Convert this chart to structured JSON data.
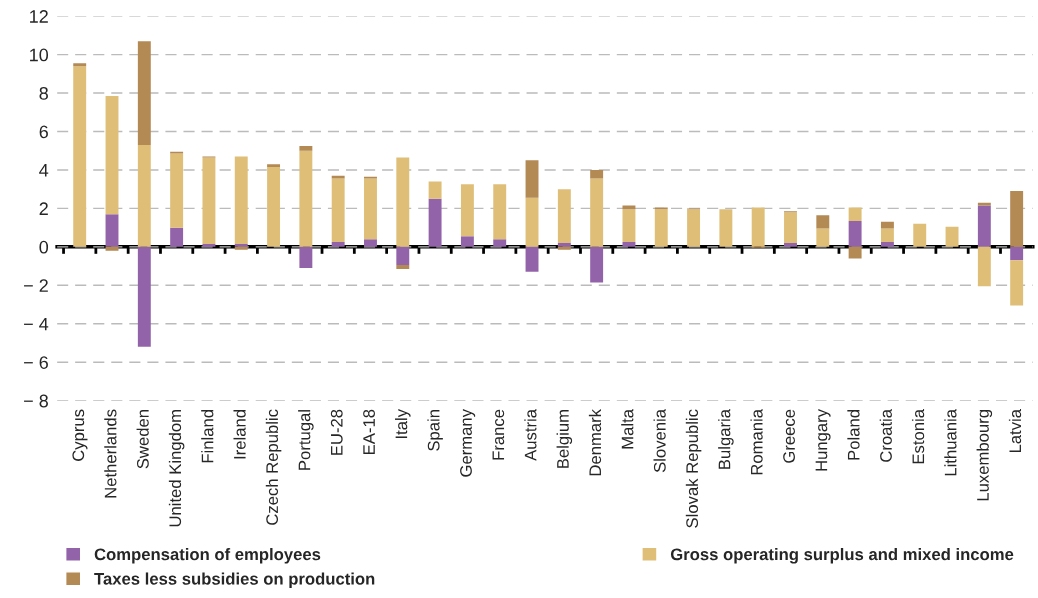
{
  "chart_data": {
    "type": "bar",
    "stacked": true,
    "categories": [
      "Cyprus",
      "Netherlands",
      "Sweden",
      "United Kingdom",
      "Finland",
      "Ireland",
      "Czech Republic",
      "Portugal",
      "EU-28",
      "EA-18",
      "Italy",
      "Spain",
      "Germany",
      "France",
      "Austria",
      "Belgium",
      "Denmark",
      "Malta",
      "Slovenia",
      "Slovak Republic",
      "Bulgaria",
      "Romania",
      "Greece",
      "Hungary",
      "Poland",
      "Croatia",
      "Estonia",
      "Lithuania",
      "Luxembourg",
      "Latvia"
    ],
    "series": [
      {
        "name": "Compensation of employees",
        "color": "#9363aa",
        "values": [
          0,
          1.7,
          -5.2,
          1.0,
          0.15,
          0.15,
          0,
          -1.1,
          0.25,
          0.4,
          -0.95,
          2.5,
          0.55,
          0.4,
          -1.3,
          0.2,
          -1.85,
          0.25,
          0,
          0,
          0,
          0,
          0.2,
          0,
          1.35,
          0.25,
          0,
          0,
          2.15,
          -0.7
        ]
      },
      {
        "name": "Gross operating surplus and mixed income",
        "color": "#dfbe78",
        "values": [
          9.4,
          6.15,
          5.3,
          3.85,
          4.5,
          4.55,
          4.15,
          5.0,
          3.3,
          3.15,
          4.65,
          0.9,
          2.7,
          2.85,
          2.55,
          2.8,
          3.55,
          1.7,
          1.95,
          1.95,
          1.95,
          2.05,
          1.6,
          0.95,
          0.7,
          0.7,
          1.2,
          1.05,
          -2.05,
          -2.35
        ]
      },
      {
        "name": "Taxes less subsidies on production",
        "color": "#b38954",
        "values": [
          0.15,
          -0.2,
          5.4,
          0.1,
          0.05,
          -0.15,
          0.15,
          0.25,
          0.15,
          0.1,
          -0.2,
          0,
          0,
          0,
          1.95,
          -0.15,
          0.45,
          0.2,
          0.1,
          0.05,
          0,
          -0.05,
          0.05,
          0.7,
          -0.6,
          0.35,
          0,
          0,
          0.15,
          2.9
        ]
      }
    ],
    "ylim": [
      -8,
      12
    ],
    "yticks": [
      {
        "value": -8,
        "label": "− 8"
      },
      {
        "value": -6,
        "label": "− 6"
      },
      {
        "value": -4,
        "label": "− 4"
      },
      {
        "value": -2,
        "label": "− 2"
      },
      0,
      2,
      4,
      6,
      8,
      10,
      12
    ],
    "grid": "y",
    "legend": "bottom"
  }
}
